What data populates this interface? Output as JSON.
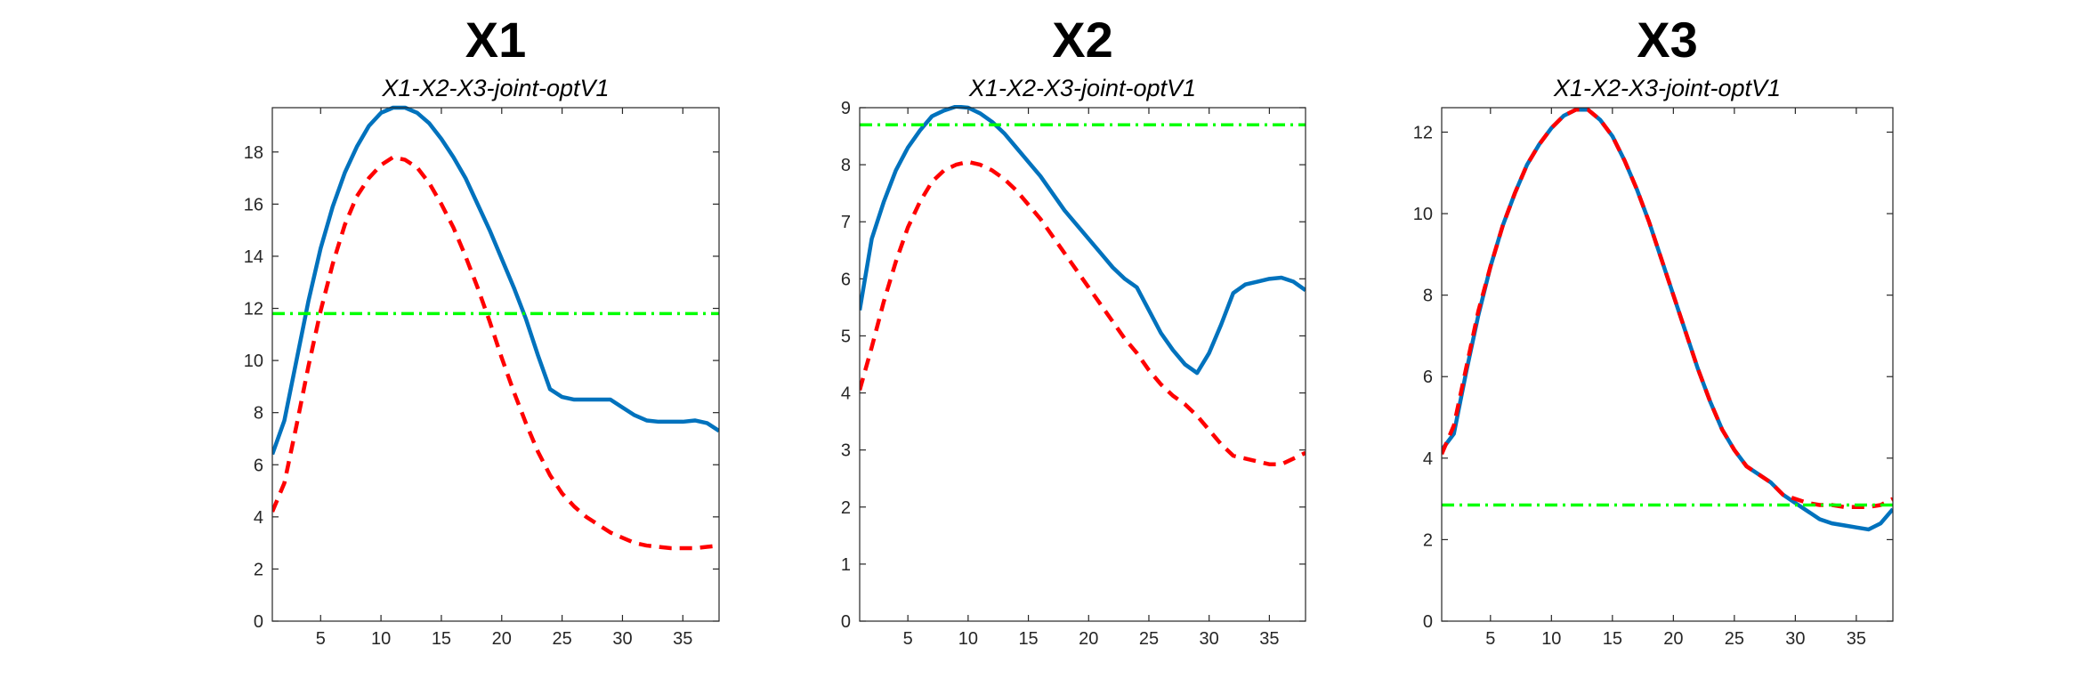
{
  "chart_data": [
    {
      "type": "line",
      "title": "X1",
      "subtitle": "X1-X2-X3-joint-optV1",
      "x": [
        1,
        2,
        3,
        4,
        5,
        6,
        7,
        8,
        9,
        10,
        11,
        12,
        13,
        14,
        15,
        16,
        17,
        18,
        19,
        20,
        21,
        22,
        23,
        24,
        25,
        26,
        27,
        28,
        29,
        30,
        31,
        32,
        33,
        34,
        35,
        36,
        37,
        38
      ],
      "xlim": [
        1,
        38
      ],
      "xticks": [
        5,
        10,
        15,
        20,
        25,
        30,
        35
      ],
      "ylim": [
        0,
        19.7
      ],
      "yticks": [
        0,
        2,
        4,
        6,
        8,
        10,
        12,
        14,
        16,
        18
      ],
      "series": [
        {
          "color": "#0072bd",
          "dash": "solid",
          "values": [
            6.4,
            7.7,
            10,
            12.3,
            14.3,
            15.9,
            17.2,
            18.2,
            19,
            19.5,
            19.7,
            19.7,
            19.5,
            19.1,
            18.5,
            17.8,
            17,
            16,
            15,
            13.9,
            12.8,
            11.6,
            10.2,
            8.9,
            8.6,
            8.5,
            8.5,
            8.5,
            8.5,
            8.2,
            7.9,
            7.7,
            7.65,
            7.65,
            7.65,
            7.7,
            7.6,
            7.3
          ]
        },
        {
          "color": "#ff0000",
          "dash": "dashed",
          "values": [
            4.2,
            5.3,
            7.5,
            9.8,
            11.9,
            13.7,
            15.2,
            16.3,
            17,
            17.5,
            17.8,
            17.7,
            17.4,
            16.8,
            16,
            15.1,
            14,
            12.8,
            11.5,
            10.1,
            8.8,
            7.6,
            6.5,
            5.6,
            4.9,
            4.4,
            4,
            3.7,
            3.4,
            3.2,
            3,
            2.9,
            2.85,
            2.8,
            2.8,
            2.8,
            2.85,
            2.9
          ]
        },
        {
          "color": "#00ff00",
          "dash": "dashdot",
          "values": [
            11.8,
            11.8,
            11.8,
            11.8,
            11.8,
            11.8,
            11.8,
            11.8,
            11.8,
            11.8,
            11.8,
            11.8,
            11.8,
            11.8,
            11.8,
            11.8,
            11.8,
            11.8,
            11.8,
            11.8,
            11.8,
            11.8,
            11.8,
            11.8,
            11.8,
            11.8,
            11.8,
            11.8,
            11.8,
            11.8,
            11.8,
            11.8,
            11.8,
            11.8,
            11.8,
            11.8,
            11.8,
            11.8
          ]
        }
      ]
    },
    {
      "type": "line",
      "title": "X2",
      "subtitle": "X1-X2-X3-joint-optV1",
      "x": [
        1,
        2,
        3,
        4,
        5,
        6,
        7,
        8,
        9,
        10,
        11,
        12,
        13,
        14,
        15,
        16,
        17,
        18,
        19,
        20,
        21,
        22,
        23,
        24,
        25,
        26,
        27,
        28,
        29,
        30,
        31,
        32,
        33,
        34,
        35,
        36,
        37,
        38
      ],
      "xlim": [
        1,
        38
      ],
      "xticks": [
        5,
        10,
        15,
        20,
        25,
        30,
        35
      ],
      "ylim": [
        0,
        9
      ],
      "yticks": [
        0,
        1,
        2,
        3,
        4,
        5,
        6,
        7,
        8,
        9
      ],
      "series": [
        {
          "color": "#0072bd",
          "dash": "solid",
          "values": [
            5.45,
            6.7,
            7.35,
            7.9,
            8.3,
            8.6,
            8.85,
            8.95,
            9.02,
            9,
            8.9,
            8.75,
            8.55,
            8.3,
            8.05,
            7.8,
            7.5,
            7.2,
            6.95,
            6.7,
            6.45,
            6.2,
            6,
            5.85,
            5.45,
            5.05,
            4.75,
            4.5,
            4.35,
            4.7,
            5.2,
            5.75,
            5.9,
            5.95,
            6,
            6.02,
            5.95,
            5.8
          ]
        },
        {
          "color": "#ff0000",
          "dash": "dashed",
          "values": [
            4.05,
            4.8,
            5.6,
            6.3,
            6.9,
            7.35,
            7.7,
            7.9,
            8,
            8.05,
            8,
            7.9,
            7.75,
            7.55,
            7.3,
            7.05,
            6.75,
            6.45,
            6.15,
            5.85,
            5.55,
            5.25,
            4.95,
            4.7,
            4.4,
            4.15,
            3.95,
            3.8,
            3.6,
            3.35,
            3.1,
            2.9,
            2.85,
            2.8,
            2.75,
            2.75,
            2.85,
            2.95
          ]
        },
        {
          "color": "#00ff00",
          "dash": "dashdot",
          "values": [
            8.7,
            8.7,
            8.7,
            8.7,
            8.7,
            8.7,
            8.7,
            8.7,
            8.7,
            8.7,
            8.7,
            8.7,
            8.7,
            8.7,
            8.7,
            8.7,
            8.7,
            8.7,
            8.7,
            8.7,
            8.7,
            8.7,
            8.7,
            8.7,
            8.7,
            8.7,
            8.7,
            8.7,
            8.7,
            8.7,
            8.7,
            8.7,
            8.7,
            8.7,
            8.7,
            8.7,
            8.7,
            8.7
          ]
        }
      ]
    },
    {
      "type": "line",
      "title": "X3",
      "subtitle": "X1-X2-X3-joint-optV1",
      "x": [
        1,
        2,
        3,
        4,
        5,
        6,
        7,
        8,
        9,
        10,
        11,
        12,
        13,
        14,
        15,
        16,
        17,
        18,
        19,
        20,
        21,
        22,
        23,
        24,
        25,
        26,
        27,
        28,
        29,
        30,
        31,
        32,
        33,
        34,
        35,
        36,
        37,
        38
      ],
      "xlim": [
        1,
        38
      ],
      "xticks": [
        5,
        10,
        15,
        20,
        25,
        30,
        35
      ],
      "ylim": [
        0,
        12.6
      ],
      "yticks": [
        0,
        2,
        4,
        6,
        8,
        10,
        12
      ],
      "series": [
        {
          "color": "#0072bd",
          "dash": "solid",
          "values": [
            4.2,
            4.6,
            6.1,
            7.5,
            8.7,
            9.7,
            10.5,
            11.2,
            11.7,
            12.1,
            12.4,
            12.55,
            12.55,
            12.3,
            11.9,
            11.3,
            10.6,
            9.8,
            8.9,
            8,
            7.1,
            6.2,
            5.4,
            4.7,
            4.2,
            3.8,
            3.6,
            3.4,
            3.1,
            2.9,
            2.7,
            2.5,
            2.4,
            2.35,
            2.3,
            2.25,
            2.4,
            2.75
          ]
        },
        {
          "color": "#ff0000",
          "dash": "dashed",
          "values": [
            4.1,
            4.8,
            6.2,
            7.6,
            8.7,
            9.7,
            10.5,
            11.2,
            11.7,
            12.1,
            12.4,
            12.55,
            12.55,
            12.3,
            11.9,
            11.3,
            10.6,
            9.8,
            8.9,
            8,
            7.1,
            6.2,
            5.4,
            4.7,
            4.2,
            3.8,
            3.6,
            3.4,
            3.1,
            3,
            2.9,
            2.85,
            2.85,
            2.8,
            2.8,
            2.8,
            2.85,
            3
          ]
        },
        {
          "color": "#00ff00",
          "dash": "dashdot",
          "values": [
            2.85,
            2.85,
            2.85,
            2.85,
            2.85,
            2.85,
            2.85,
            2.85,
            2.85,
            2.85,
            2.85,
            2.85,
            2.85,
            2.85,
            2.85,
            2.85,
            2.85,
            2.85,
            2.85,
            2.85,
            2.85,
            2.85,
            2.85,
            2.85,
            2.85,
            2.85,
            2.85,
            2.85,
            2.85,
            2.85,
            2.85,
            2.85,
            2.85,
            2.85,
            2.85,
            2.85,
            2.85,
            2.85
          ]
        }
      ]
    }
  ]
}
